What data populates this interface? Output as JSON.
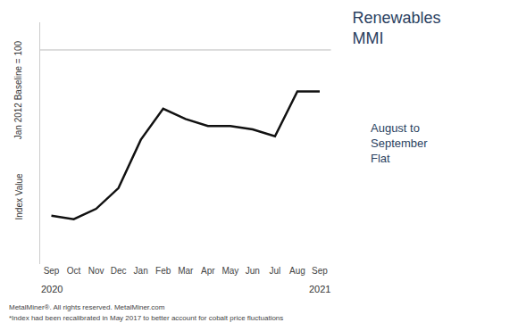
{
  "chart_data": {
    "type": "line",
    "title": "Renewables\nMMI",
    "categories": [
      "Sep",
      "Oct",
      "Nov",
      "Dec",
      "Jan",
      "Feb",
      "Mar",
      "Apr",
      "May",
      "Jun",
      "Jul",
      "Aug",
      "Sep"
    ],
    "values": [
      52,
      51,
      54,
      60,
      74,
      83,
      80,
      78,
      78,
      77,
      75,
      88,
      88
    ],
    "color": "#111111",
    "ylabel": [
      "Jan 2012 Baseline = 100",
      "Index Value"
    ],
    "ylim": [
      38,
      108
    ],
    "grid": false,
    "tick_labels": "x",
    "reference_lines": [
      100
    ],
    "annotations": [
      {
        "text": "2020",
        "x": 0
      },
      {
        "text": "2021",
        "x": 12
      },
      {
        "text": "August to\nSeptember\nFlat"
      }
    ],
    "footer": [
      "MetalMiner®. All rights reserved. MetalMiner.com",
      "*Index had been recalibrated in May 2017 to better account for cobalt price fluctuations"
    ]
  }
}
